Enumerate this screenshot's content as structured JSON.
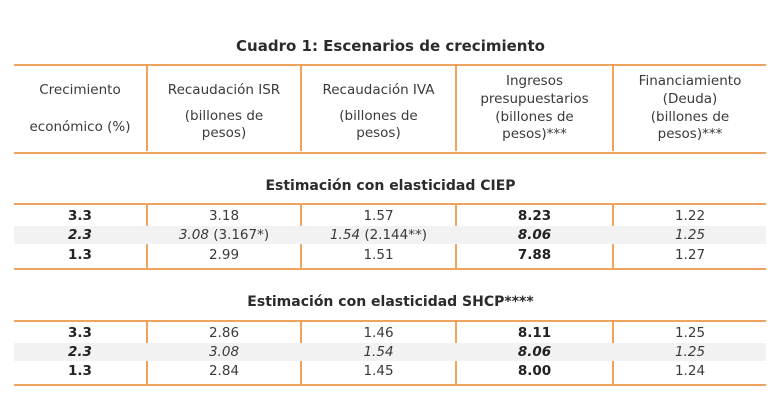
{
  "title": "Cuadro 1: Escenarios de crecimiento",
  "headers": [
    {
      "line1": "Crecimiento",
      "line2": "económico (%)"
    },
    {
      "line1": "Recaudación ISR",
      "line2": "(billones de",
      "line3": "pesos)"
    },
    {
      "line1": "Recaudación IVA",
      "line2": "(billones de",
      "line3": "pesos)"
    },
    {
      "line1": "Ingresos",
      "line2": "presupuestarios",
      "line3": "(billones de",
      "line4": "pesos)***"
    },
    {
      "line1": "Financiamiento",
      "line2": "(Deuda)",
      "line3": "(billones de",
      "line4": "pesos)***"
    }
  ],
  "sections": [
    {
      "title": "Estimación con elasticidad CIEP",
      "rows": [
        {
          "growth": "3.3",
          "isr": "3.18",
          "isr_extra": "",
          "iva": "1.57",
          "iva_extra": "",
          "ingresos": "8.23",
          "deuda": "1.22",
          "italic": false
        },
        {
          "growth": "2.3",
          "isr": "3.08",
          "isr_extra": " (3.167*)",
          "iva": "1.54",
          "iva_extra": " (2.144**)",
          "ingresos": "8.06",
          "deuda": "1.25",
          "italic": true
        },
        {
          "growth": "1.3",
          "isr": "2.99",
          "isr_extra": "",
          "iva": "1.51",
          "iva_extra": "",
          "ingresos": "7.88",
          "deuda": "1.27",
          "italic": false
        }
      ]
    },
    {
      "title": "Estimación con elasticidad SHCP****",
      "rows": [
        {
          "growth": "3.3",
          "isr": "2.86",
          "isr_extra": "",
          "iva": "1.46",
          "iva_extra": "",
          "ingresos": "8.11",
          "deuda": "1.25",
          "italic": false
        },
        {
          "growth": "2.3",
          "isr": "3.08",
          "isr_extra": "",
          "iva": "1.54",
          "iva_extra": "",
          "ingresos": "8.06",
          "deuda": "1.25",
          "italic": true
        },
        {
          "growth": "1.3",
          "isr": "2.84",
          "isr_extra": "",
          "iva": "1.45",
          "iva_extra": "",
          "ingresos": "8.00",
          "deuda": "1.24",
          "italic": false
        }
      ]
    }
  ],
  "colors": {
    "rule": "#f0a35e",
    "shade": "#f2f2f2",
    "text": "#3a3a3a"
  }
}
